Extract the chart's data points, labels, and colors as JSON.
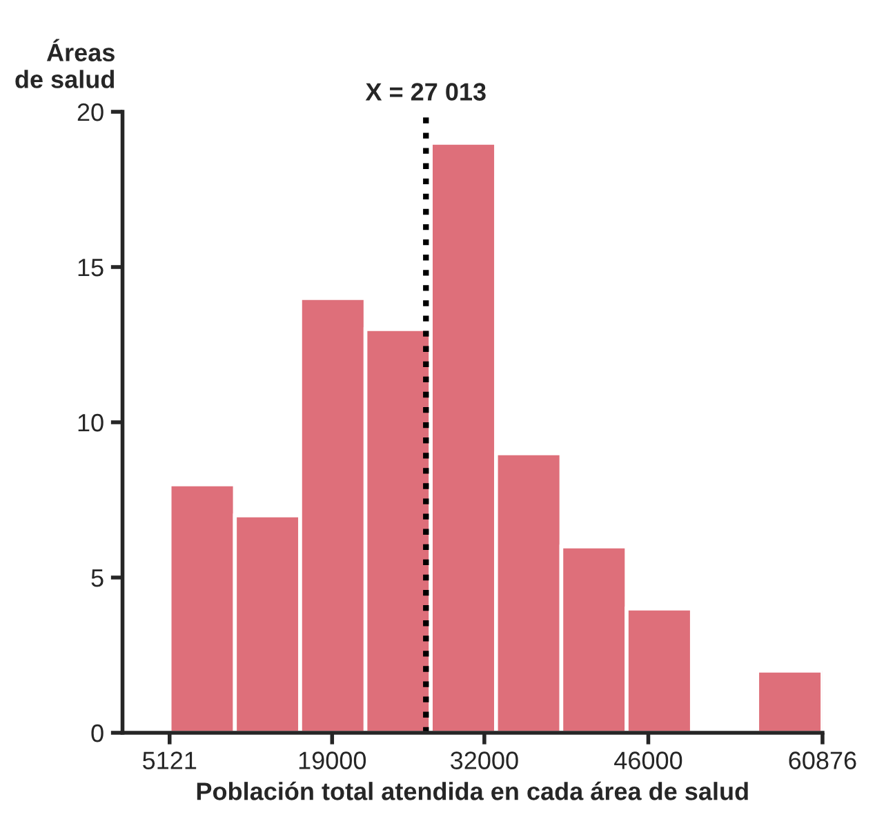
{
  "chart_data": {
    "type": "histogram",
    "xlabel": "Población total atendida en cada área de salud",
    "ylabel": "Áreas\nde salud",
    "bins": [
      5121,
      10696.5,
      16272,
      21847.5,
      27423,
      32998.5,
      38574,
      44149.5,
      49725,
      55300.5,
      60876
    ],
    "values": [
      8,
      7,
      14,
      13,
      19,
      9,
      6,
      4,
      0,
      2
    ],
    "color": "#de6f7a",
    "xlim": [
      1100,
      60876
    ],
    "xticks": [
      5121,
      19000,
      32000,
      46000,
      60876
    ],
    "ylim": [
      0,
      20
    ],
    "yticks": [
      0,
      5,
      10,
      15,
      20
    ],
    "grid": false,
    "ref_lines": [
      {
        "axis": "x",
        "value": 27013,
        "label": "X = 27 013",
        "color": "#000000",
        "line_style": "dotted"
      }
    ]
  }
}
